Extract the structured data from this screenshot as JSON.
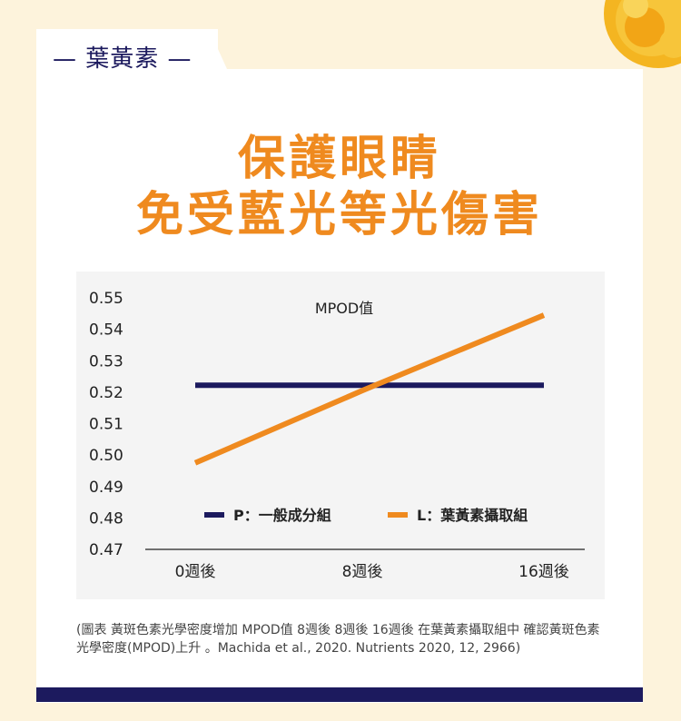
{
  "tag": {
    "label": "— 葉黃素 —"
  },
  "headline": {
    "line1": "保護眼睛",
    "line2": "免受藍光等光傷害"
  },
  "chart_data": {
    "type": "line",
    "title": "MPOD值",
    "categories": [
      "0週後",
      "8週後",
      "16週後"
    ],
    "yticks": [
      "0.55",
      "0.54",
      "0.53",
      "0.52",
      "0.51",
      "0.50",
      "0.49",
      "0.48",
      "0.47"
    ],
    "ylim": [
      0.47,
      0.55
    ],
    "series": [
      {
        "name": "P：一般成分組",
        "color": "#1c1a5e",
        "values": [
          0.5222,
          0.5222,
          0.5222
        ]
      },
      {
        "name": "L：葉黃素攝取組",
        "color": "#ef8a1f",
        "values": [
          0.4975,
          0.5205,
          0.5445
        ]
      }
    ],
    "legend_position": "bottom-center",
    "grid": false
  },
  "caption": "(圖表 黃斑色素光學密度增加 MPOD值 8週後 8週後 16週後 在葉黃素攝取組中 確認黃斑色素光學密度(MPOD)上升 。Machida et al., 2020. Nutrients 2020, 12, 2966)",
  "colors": {
    "accent": "#ef8a1f",
    "navy": "#1c1a5e",
    "background": "#fdf3dc"
  }
}
